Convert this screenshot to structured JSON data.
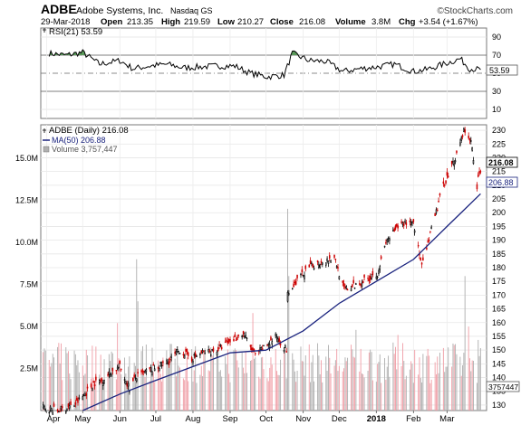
{
  "header": {
    "symbol": "ADBE",
    "company": "Adobe Systems, Inc.",
    "exchange": "Nasdaq GS",
    "date": "29-Mar-2018",
    "open_label": "Open",
    "open": "213.35",
    "high_label": "High",
    "high": "219.59",
    "low_label": "Low",
    "low": "210.27",
    "close_label": "Close",
    "close": "216.08",
    "volume_label": "Volume",
    "volume": "3.8M",
    "chg_label": "Chg",
    "chg": "+3.54 (+1.67%)",
    "watermark": "©StockCharts.com"
  },
  "colors": {
    "up": "#000000",
    "down": "#cc0000",
    "ma": "#1a237e",
    "rsi_fill": "#5a9a5a",
    "volume_up": "#b0b0b0",
    "volume_down": "#f0a0a8"
  },
  "chart_data": [
    {
      "type": "line",
      "legend": "RSI(21) 53.59",
      "series": [
        {
          "name": "RSI(21)",
          "last": 53.59
        }
      ],
      "yticks": [
        10,
        30,
        50,
        70,
        90
      ],
      "ylim": [
        0,
        100
      ],
      "overbought": 70,
      "oversold": 30,
      "midline": 50,
      "last_label": "53.59",
      "x": [
        "2017-04-03",
        "2017-04-17",
        "2017-05-01",
        "2017-05-15",
        "2017-06-01",
        "2017-06-12",
        "2017-06-26",
        "2017-07-10",
        "2017-07-24",
        "2017-08-07",
        "2017-08-21",
        "2017-09-05",
        "2017-09-18",
        "2017-10-02",
        "2017-10-16",
        "2017-10-23",
        "2017-11-06",
        "2017-11-20",
        "2017-12-04",
        "2017-12-18",
        "2018-01-02",
        "2018-01-16",
        "2018-02-01",
        "2018-02-12",
        "2018-02-26",
        "2018-03-12",
        "2018-03-20",
        "2018-03-29"
      ],
      "values": [
        72,
        70,
        73,
        60,
        64,
        55,
        58,
        60,
        56,
        57,
        58,
        58,
        50,
        46,
        48,
        72,
        64,
        63,
        52,
        55,
        57,
        60,
        52,
        54,
        60,
        66,
        55,
        54
      ]
    },
    {
      "type": "candlestick",
      "legend": [
        {
          "label": "ADBE (Daily) 216.08"
        },
        {
          "label": "MA(50) 206.88"
        },
        {
          "label": "Volume 3,757,447"
        }
      ],
      "series": [
        {
          "name": "ADBE (Daily)",
          "last": 216.08
        },
        {
          "name": "MA(50)",
          "last": 206.88
        },
        {
          "name": "Volume",
          "last": 3757447
        }
      ],
      "price_ticks": [
        130,
        135,
        140,
        145,
        150,
        155,
        160,
        165,
        170,
        175,
        180,
        185,
        190,
        195,
        200,
        205,
        210,
        215,
        220,
        225,
        230
      ],
      "price_ylim": [
        128,
        232
      ],
      "price_labels": {
        "close": "216.08",
        "ma": "206.88",
        "volume": "3757447"
      },
      "volume_ticks": [
        "2.5M",
        "5.0M",
        "7.5M",
        "10.0M",
        "12.5M",
        "15.0M"
      ],
      "volume_tick_values": [
        2.5,
        5.0,
        7.5,
        10.0,
        12.5,
        15.0
      ],
      "volume_ylim_millions": [
        0,
        17
      ],
      "xlabels": [
        "Apr",
        "May",
        "Jun",
        "Jul",
        "Aug",
        "Sep",
        "Oct",
        "Nov",
        "Dec",
        "2018",
        "Feb",
        "Mar"
      ],
      "xlabel_dates": [
        "2017-04-01",
        "2017-05-01",
        "2017-06-01",
        "2017-07-01",
        "2017-08-01",
        "2017-09-01",
        "2017-10-01",
        "2017-11-01",
        "2017-12-01",
        "2018-01-01",
        "2018-02-01",
        "2018-03-01"
      ],
      "date_range": [
        "2017-03-27",
        "2018-04-03"
      ],
      "price_path": [
        [
          "2017-03-29",
          129
        ],
        [
          "2017-04-10",
          128
        ],
        [
          "2017-04-24",
          130
        ],
        [
          "2017-05-01",
          133
        ],
        [
          "2017-05-10",
          138
        ],
        [
          "2017-05-17",
          139
        ],
        [
          "2017-05-25",
          142
        ],
        [
          "2017-06-01",
          144
        ],
        [
          "2017-06-09",
          136
        ],
        [
          "2017-06-14",
          140
        ],
        [
          "2017-06-23",
          142
        ],
        [
          "2017-07-03",
          144
        ],
        [
          "2017-07-12",
          146
        ],
        [
          "2017-07-21",
          150
        ],
        [
          "2017-07-31",
          147
        ],
        [
          "2017-08-09",
          149
        ],
        [
          "2017-08-21",
          150
        ],
        [
          "2017-08-31",
          153
        ],
        [
          "2017-09-12",
          156
        ],
        [
          "2017-09-22",
          148
        ],
        [
          "2017-10-02",
          152
        ],
        [
          "2017-10-10",
          155
        ],
        [
          "2017-10-18",
          150
        ],
        [
          "2017-10-19",
          170
        ],
        [
          "2017-10-26",
          175
        ],
        [
          "2017-11-06",
          180
        ],
        [
          "2017-11-15",
          182
        ],
        [
          "2017-11-27",
          184
        ],
        [
          "2017-12-05",
          172
        ],
        [
          "2017-12-12",
          173
        ],
        [
          "2017-12-20",
          175
        ],
        [
          "2018-01-02",
          178
        ],
        [
          "2018-01-10",
          190
        ],
        [
          "2018-01-22",
          196
        ],
        [
          "2018-02-01",
          197
        ],
        [
          "2018-02-08",
          180
        ],
        [
          "2018-02-15",
          192
        ],
        [
          "2018-02-26",
          210
        ],
        [
          "2018-03-08",
          220
        ],
        [
          "2018-03-15",
          230
        ],
        [
          "2018-03-21",
          226
        ],
        [
          "2018-03-26",
          210
        ],
        [
          "2018-03-29",
          216
        ]
      ],
      "ma_path": [
        [
          "2017-05-01",
          128
        ],
        [
          "2017-06-01",
          134
        ],
        [
          "2017-07-01",
          139
        ],
        [
          "2017-08-01",
          144
        ],
        [
          "2017-09-01",
          149
        ],
        [
          "2017-10-01",
          150
        ],
        [
          "2017-11-01",
          157
        ],
        [
          "2017-12-01",
          167
        ],
        [
          "2018-01-01",
          175
        ],
        [
          "2018-02-01",
          183
        ],
        [
          "2018-03-01",
          195
        ],
        [
          "2018-03-29",
          206.88
        ]
      ],
      "volume_spikes": [
        [
          "2017-05-30",
          5.2,
          "down"
        ],
        [
          "2017-06-15",
          9.0,
          "up"
        ],
        [
          "2017-06-16",
          6.5,
          "up"
        ],
        [
          "2017-09-20",
          5.8,
          "down"
        ],
        [
          "2017-10-19",
          12.0,
          "up"
        ],
        [
          "2017-10-20",
          8.0,
          "up"
        ],
        [
          "2017-12-15",
          4.8,
          "up"
        ],
        [
          "2018-01-19",
          4.5,
          "down"
        ],
        [
          "2018-03-16",
          8.0,
          "up"
        ],
        [
          "2018-03-19",
          5.0,
          "down"
        ],
        [
          "2018-03-27",
          4.2,
          "up"
        ]
      ],
      "volume_base_millions": 2.7
    }
  ]
}
